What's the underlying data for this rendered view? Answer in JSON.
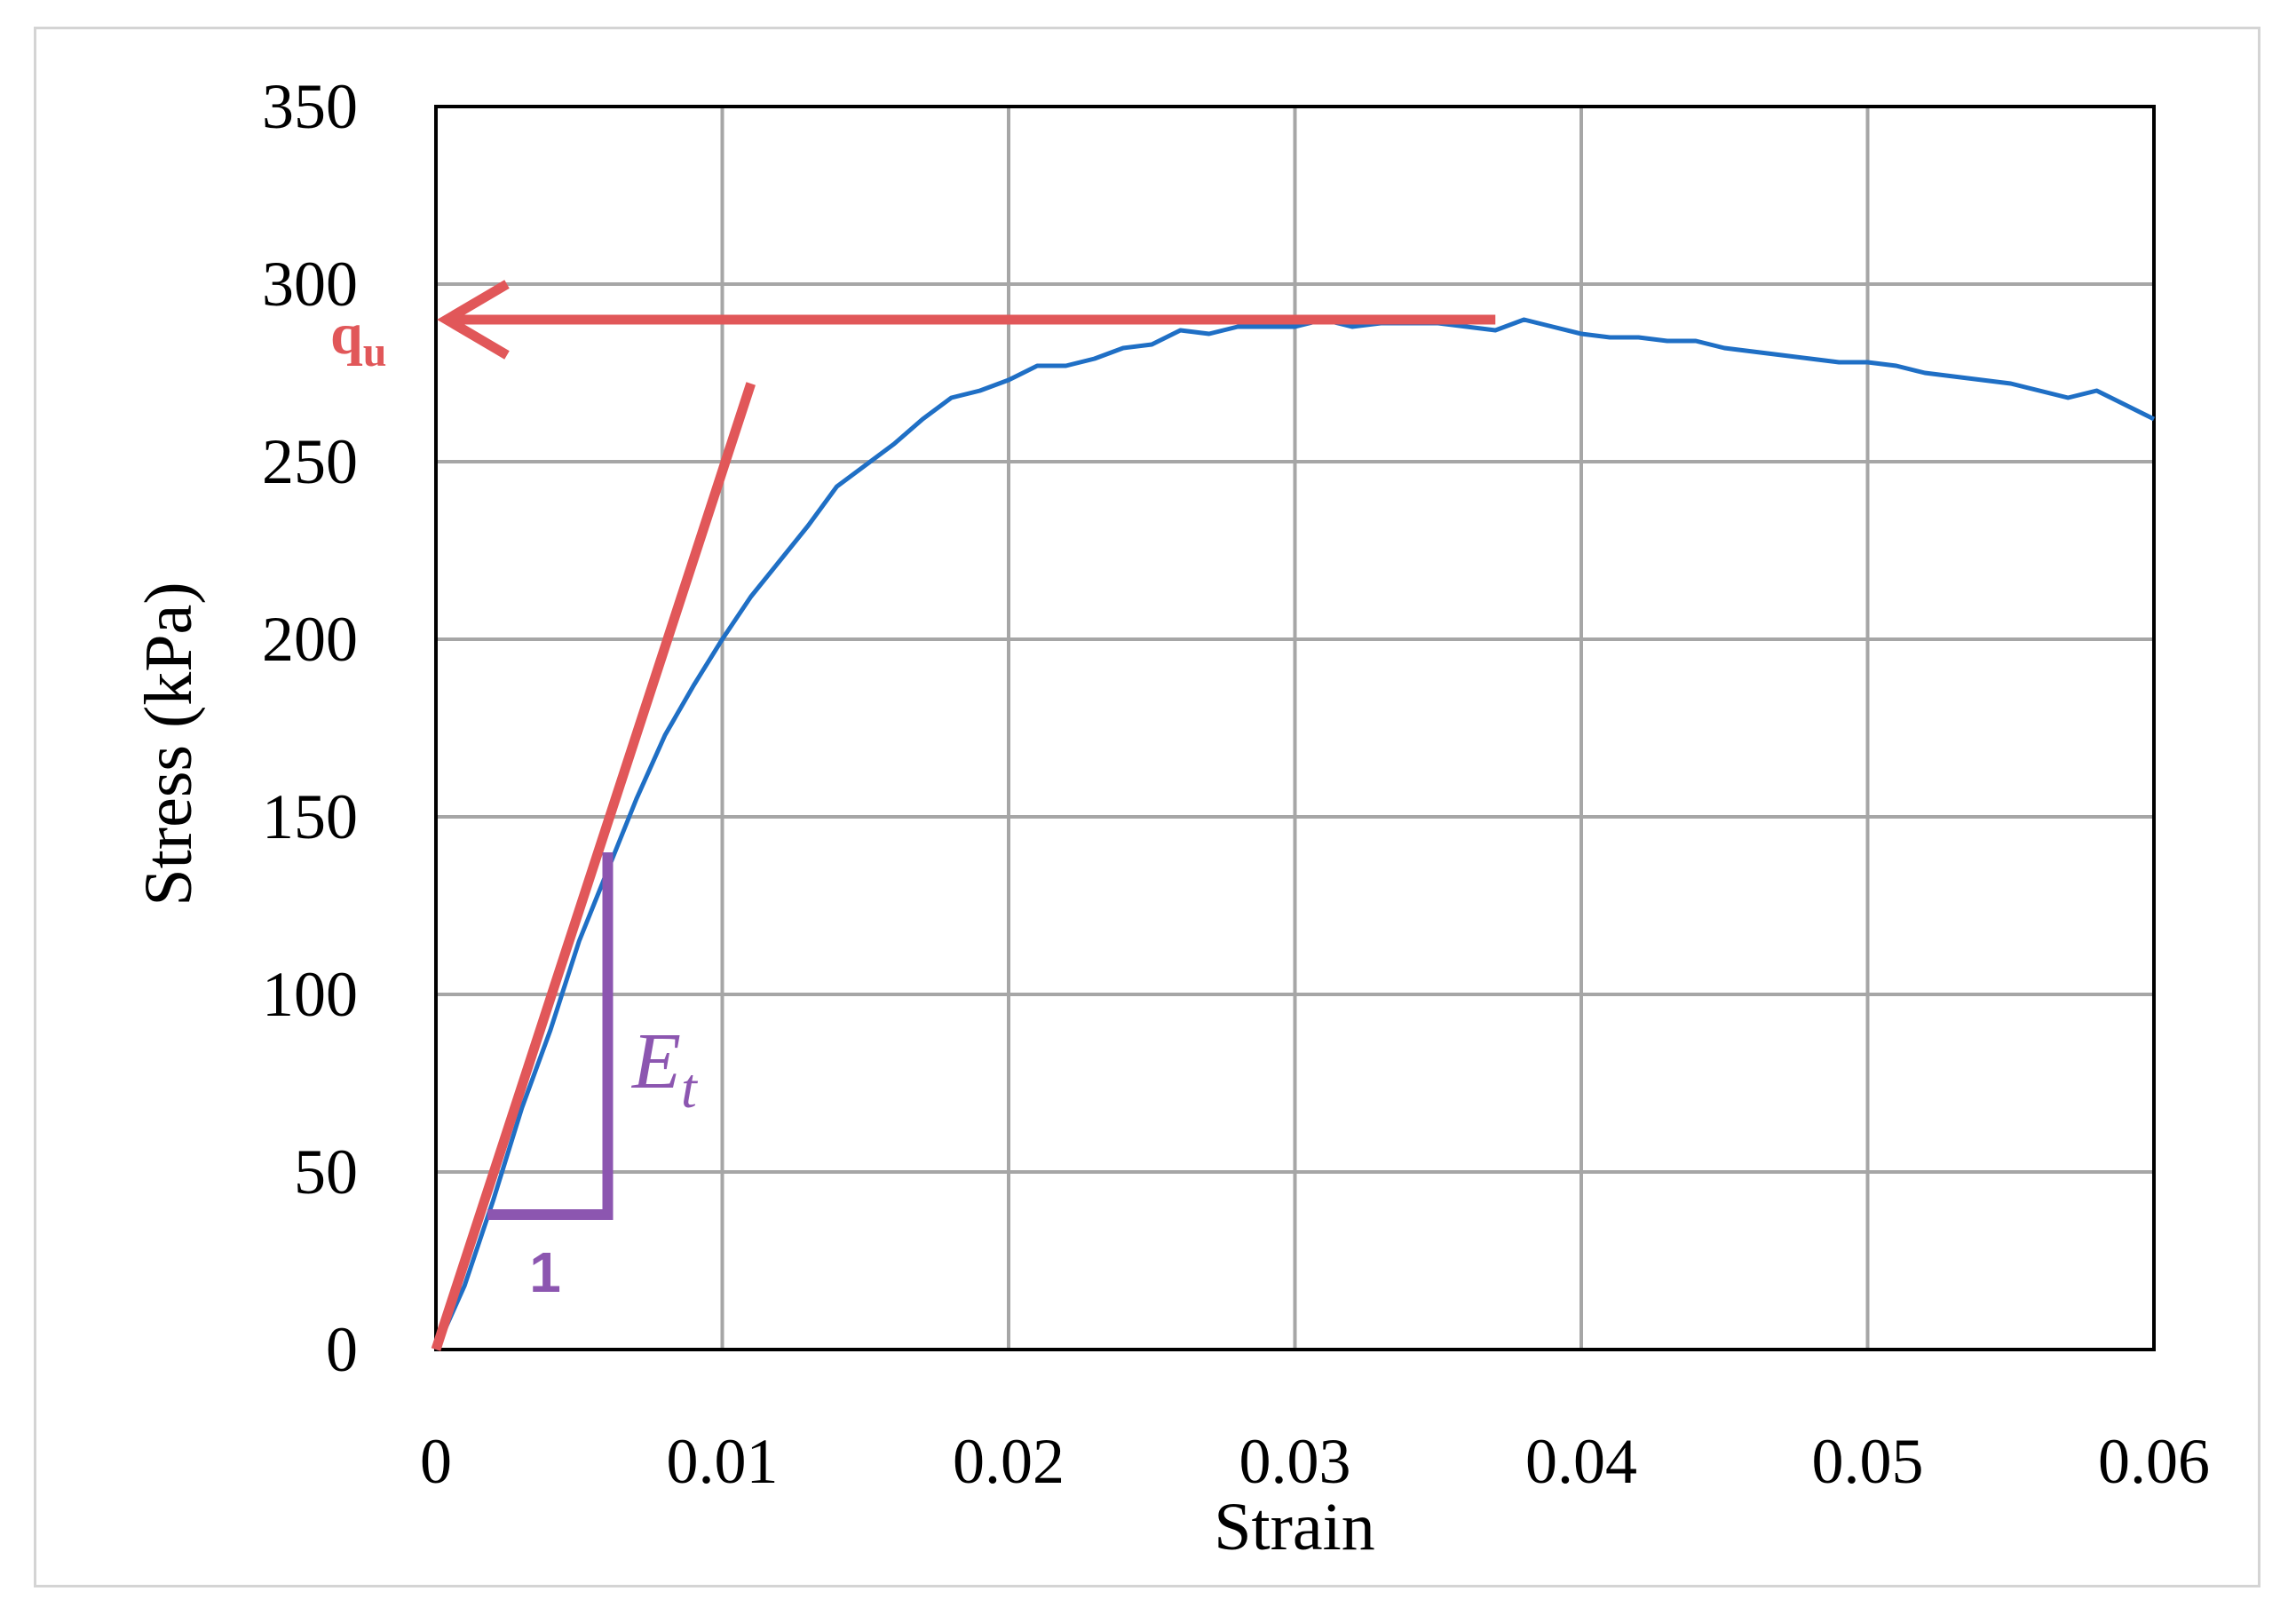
{
  "chart_data": {
    "type": "line",
    "title": "",
    "xlabel": "Strain",
    "ylabel": "Stress (kPa)",
    "xlim": [
      0,
      0.06
    ],
    "ylim": [
      0,
      350
    ],
    "x_ticks": [
      "0",
      "0.01",
      "0.02",
      "0.03",
      "0.04",
      "0.05",
      "0.06"
    ],
    "y_ticks": [
      "0",
      "50",
      "100",
      "150",
      "200",
      "250",
      "300",
      "350"
    ],
    "grid": true,
    "legend": "none",
    "series": [
      {
        "color": "#1f6fc5",
        "x": [
          0,
          0.001,
          0.002,
          0.003,
          0.004,
          0.005,
          0.006,
          0.007,
          0.008,
          0.009,
          0.01,
          0.011,
          0.012,
          0.013,
          0.014,
          0.015,
          0.016,
          0.017,
          0.018,
          0.019,
          0.02,
          0.021,
          0.022,
          0.023,
          0.024,
          0.025,
          0.026,
          0.027,
          0.028,
          0.029,
          0.03,
          0.031,
          0.032,
          0.033,
          0.034,
          0.035,
          0.036,
          0.037,
          0.038,
          0.039,
          0.04,
          0.041,
          0.042,
          0.043,
          0.044,
          0.045,
          0.046,
          0.047,
          0.048,
          0.049,
          0.05,
          0.051,
          0.052,
          0.053,
          0.054,
          0.055,
          0.056,
          0.057,
          0.058,
          0.059,
          0.06
        ],
        "y": [
          0,
          18,
          42,
          68,
          90,
          115,
          135,
          155,
          173,
          187,
          200,
          212,
          222,
          232,
          243,
          249,
          255,
          262,
          268,
          270,
          273,
          277,
          277,
          279,
          282,
          283,
          287,
          286,
          288,
          288,
          288,
          290,
          288,
          289,
          289,
          289,
          288,
          287,
          290,
          288,
          286,
          285,
          285,
          284,
          284,
          282,
          281,
          280,
          279,
          278,
          278,
          277,
          275,
          274,
          273,
          272,
          270,
          268,
          270,
          266,
          262
        ]
      }
    ],
    "annotations": {
      "qu": {
        "label": "q",
        "sub": "u",
        "value": 290,
        "color": "#e15759",
        "arrow_from_x": 0.037
      },
      "tangent": {
        "color": "#e15759",
        "x": [
          0,
          0.011
        ],
        "y": [
          0,
          272
        ]
      },
      "triangle": {
        "color": "#8c56b0",
        "x": [
          0.0018,
          0.006
        ],
        "y_base": 38,
        "y_top": 140,
        "run_label": "1",
        "rise_label": "E",
        "rise_sub": "t"
      }
    }
  }
}
